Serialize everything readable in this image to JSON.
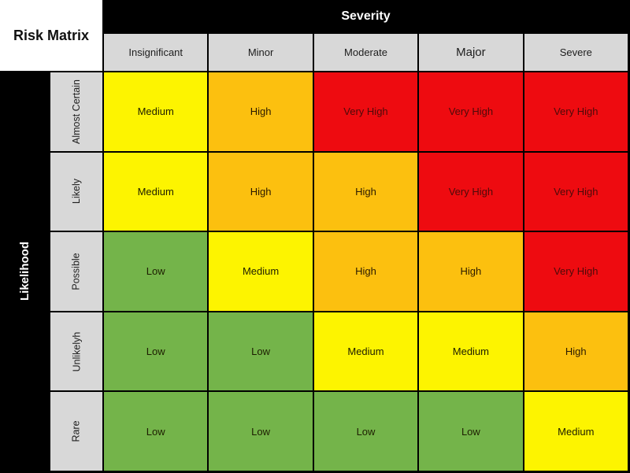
{
  "title": "Risk Matrix",
  "axes": {
    "severity": "Severity",
    "likelihood": "Likelihood"
  },
  "severity_levels": [
    "Insignificant",
    "Minor",
    "Moderate",
    "Major",
    "Severe"
  ],
  "likelihood_levels": [
    "Almost Certain",
    "Likely",
    "Possible",
    "Unlikelyh",
    "Rare"
  ],
  "colors": {
    "low": "#74b44a",
    "medium": "#fdf400",
    "high": "#fcc00f",
    "very_high": "#ee0b10",
    "header_bg": "#d8d8d8",
    "band_bg": "#000000"
  },
  "matrix": {
    "rows": [
      {
        "label": "Almost Certain",
        "cells": [
          {
            "text": "Medium",
            "level": "medium"
          },
          {
            "text": "High",
            "level": "high"
          },
          {
            "text": "Very High",
            "level": "very_high"
          },
          {
            "text": "Very High",
            "level": "very_high"
          },
          {
            "text": "Very High",
            "level": "very_high"
          }
        ]
      },
      {
        "label": "Likely",
        "cells": [
          {
            "text": "Medium",
            "level": "medium"
          },
          {
            "text": "High",
            "level": "high"
          },
          {
            "text": "High",
            "level": "high"
          },
          {
            "text": "Very High",
            "level": "very_high"
          },
          {
            "text": "Very High",
            "level": "very_high"
          }
        ]
      },
      {
        "label": "Possible",
        "cells": [
          {
            "text": "Low",
            "level": "low"
          },
          {
            "text": "Medium",
            "level": "medium"
          },
          {
            "text": "High",
            "level": "high"
          },
          {
            "text": "High",
            "level": "high"
          },
          {
            "text": "Very High",
            "level": "very_high"
          }
        ]
      },
      {
        "label": "Unlikelyh",
        "cells": [
          {
            "text": "Low",
            "level": "low"
          },
          {
            "text": "Low",
            "level": "low"
          },
          {
            "text": "Medium",
            "level": "medium"
          },
          {
            "text": "Medium",
            "level": "medium"
          },
          {
            "text": "High",
            "level": "high"
          }
        ]
      },
      {
        "label": "Rare",
        "cells": [
          {
            "text": "Low",
            "level": "low"
          },
          {
            "text": "Low",
            "level": "low"
          },
          {
            "text": "Low",
            "level": "low"
          },
          {
            "text": "Low",
            "level": "low"
          },
          {
            "text": "Medium",
            "level": "medium"
          }
        ]
      }
    ]
  },
  "chart_data": {
    "type": "heatmap",
    "title": "Risk Matrix",
    "xlabel": "Severity",
    "ylabel": "Likelihood",
    "x_categories": [
      "Insignificant",
      "Minor",
      "Moderate",
      "Major",
      "Severe"
    ],
    "y_categories": [
      "Almost Certain",
      "Likely",
      "Possible",
      "Unlikelyh",
      "Rare"
    ],
    "values": [
      [
        "Medium",
        "High",
        "Very High",
        "Very High",
        "Very High"
      ],
      [
        "Medium",
        "High",
        "High",
        "Very High",
        "Very High"
      ],
      [
        "Low",
        "Medium",
        "High",
        "High",
        "Very High"
      ],
      [
        "Low",
        "Low",
        "Medium",
        "Medium",
        "High"
      ],
      [
        "Low",
        "Low",
        "Low",
        "Low",
        "Medium"
      ]
    ],
    "cell_colors": {
      "Low": "#74b44a",
      "Medium": "#fdf400",
      "High": "#fcc00f",
      "Very High": "#ee0b10"
    },
    "legend_position": "none",
    "grid": true
  }
}
